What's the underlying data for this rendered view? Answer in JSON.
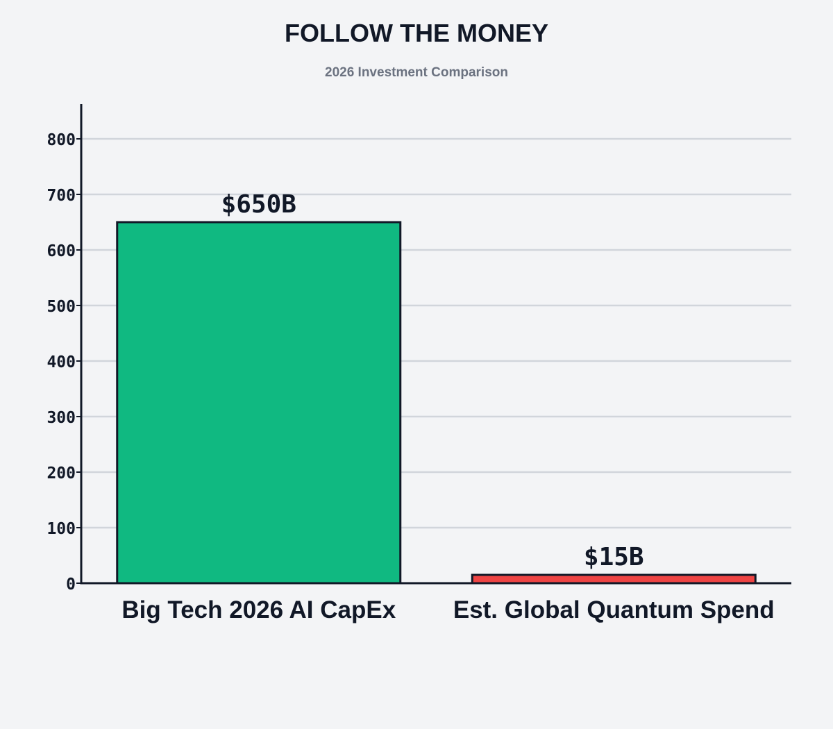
{
  "title": "FOLLOW THE MONEY",
  "subtitle": "2026 Investment Comparison",
  "chart_data": {
    "type": "bar",
    "title": "FOLLOW THE MONEY",
    "subtitle": "2026 Investment Comparison",
    "categories": [
      "Big Tech 2026 AI CapEx",
      "Est. Global Quantum Spend"
    ],
    "values": [
      650,
      15
    ],
    "data_labels": [
      "$650B",
      "$15B"
    ],
    "colors": [
      "#10b981",
      "#ef4444"
    ],
    "ylim": [
      0,
      860
    ],
    "yticks": [
      0,
      100,
      200,
      300,
      400,
      500,
      600,
      700,
      800
    ],
    "xlabel": "",
    "ylabel": "",
    "grid": true,
    "legend": "none"
  },
  "colors": {
    "background": "#f3f4f6",
    "axis": "#111827",
    "grid": "#d1d5db",
    "text": "#111827",
    "subtitle": "#6b7280"
  }
}
